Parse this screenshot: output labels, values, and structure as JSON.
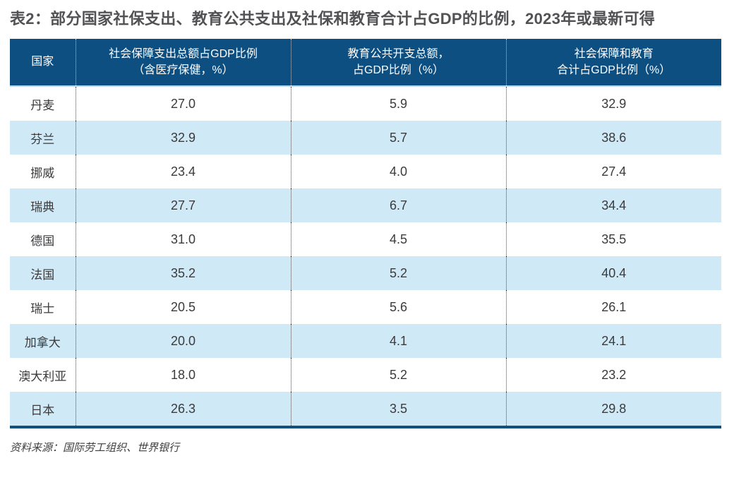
{
  "title": "表2：部分国家社保支出、教育公共支出及社保和教育合计占GDP的比例，2023年或最新可得",
  "table": {
    "columns": [
      {
        "label": "国家"
      },
      {
        "line1": "社会保障支出总额占GDP比例",
        "line2": "（含医疗保健，%）"
      },
      {
        "line1": "教育公共开支总额，",
        "line2": "占GDP比例（%）"
      },
      {
        "line1": "社会保障和教育",
        "line2": "合计占GDP比例（%）"
      }
    ],
    "rows": [
      {
        "country": "丹麦",
        "social": "27.0",
        "education": "5.9",
        "total": "32.9"
      },
      {
        "country": "芬兰",
        "social": "32.9",
        "education": "5.7",
        "total": "38.6"
      },
      {
        "country": "挪威",
        "social": "23.4",
        "education": "4.0",
        "total": "27.4"
      },
      {
        "country": "瑞典",
        "social": "27.7",
        "education": "6.7",
        "total": "34.4"
      },
      {
        "country": "德国",
        "social": "31.0",
        "education": "4.5",
        "total": "35.5"
      },
      {
        "country": "法国",
        "social": "35.2",
        "education": "5.2",
        "total": "40.4"
      },
      {
        "country": "瑞士",
        "social": "20.5",
        "education": "5.6",
        "total": "26.1"
      },
      {
        "country": "加拿大",
        "social": "20.0",
        "education": "4.1",
        "total": "24.1"
      },
      {
        "country": "澳大利亚",
        "social": "18.0",
        "education": "5.2",
        "total": "23.2"
      },
      {
        "country": "日本",
        "social": "26.3",
        "education": "3.5",
        "total": "29.8"
      }
    ]
  },
  "source": "资料来源：国际劳工组织、世界银行",
  "colors": {
    "header_background": "#0e4f82",
    "alternate_row_background": "#cfe9f6",
    "bottom_border": "#10507f",
    "header_text": "#ffffff",
    "body_text": "#3b3b3d",
    "title_text": "#525254"
  },
  "chart_data": {
    "type": "table",
    "title": "表2：部分国家社保支出、教育公共支出及社保和教育合计占GDP的比例，2023年或最新可得",
    "columns": [
      "国家",
      "社会保障支出总额占GDP比例（含医疗保健，%）",
      "教育公共开支总额，占GDP比例（%）",
      "社会保障和教育合计占GDP比例（%）"
    ],
    "rows": [
      [
        "丹麦",
        27.0,
        5.9,
        32.9
      ],
      [
        "芬兰",
        32.9,
        5.7,
        38.6
      ],
      [
        "挪威",
        23.4,
        4.0,
        27.4
      ],
      [
        "瑞典",
        27.7,
        6.7,
        34.4
      ],
      [
        "德国",
        31.0,
        4.5,
        35.5
      ],
      [
        "法国",
        35.2,
        5.2,
        40.4
      ],
      [
        "瑞士",
        20.5,
        5.6,
        26.1
      ],
      [
        "加拿大",
        20.0,
        4.1,
        24.1
      ],
      [
        "澳大利亚",
        18.0,
        5.2,
        23.2
      ],
      [
        "日本",
        26.3,
        3.5,
        29.8
      ]
    ],
    "source": "资料来源：国际劳工组织、世界银行"
  }
}
